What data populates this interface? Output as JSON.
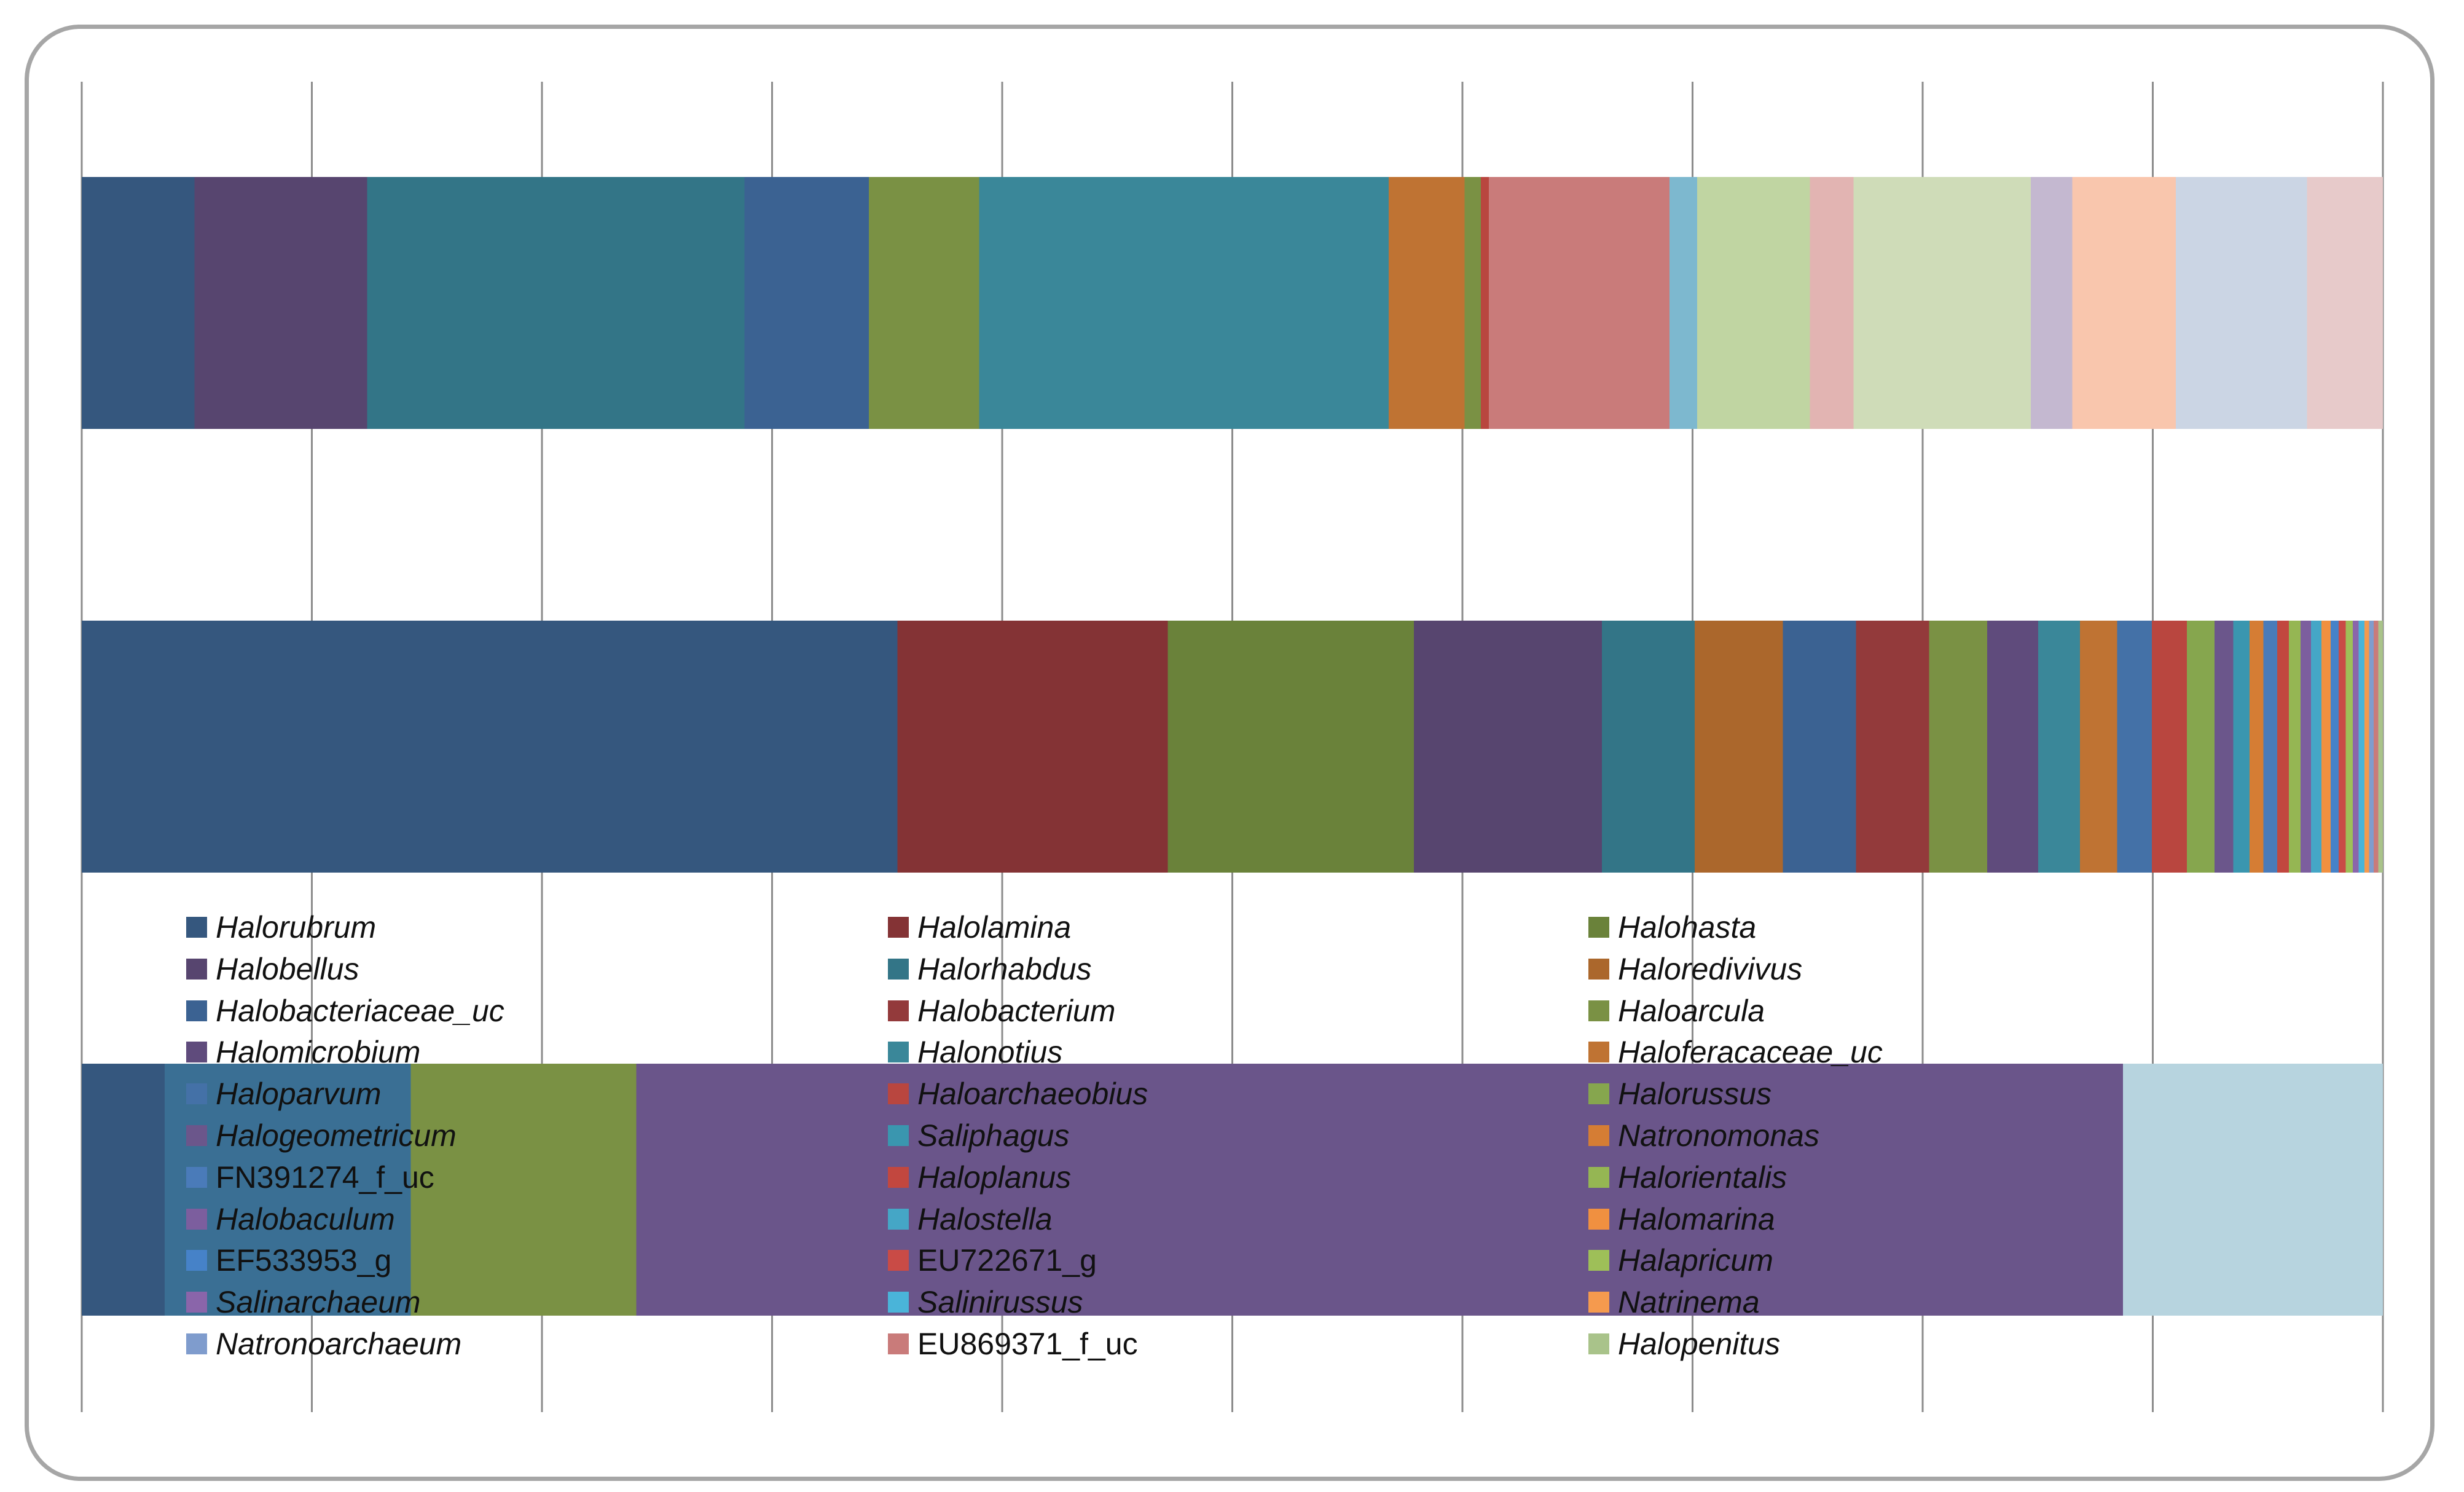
{
  "chart_data": {
    "type": "bar",
    "orientation": "horizontal",
    "stacked": "percent",
    "title": "",
    "xlabel": "",
    "ylabel": "",
    "xlim": [
      0,
      100
    ],
    "grid": true,
    "x_tick_labels": false,
    "bars": [
      {
        "segments": [
          {
            "value": 4.9,
            "color": "#35577e"
          },
          {
            "value": 7.5,
            "color": "#57456f"
          },
          {
            "value": 16.4,
            "color": "#337587"
          },
          {
            "value": 5.4,
            "color": "#3b6292"
          },
          {
            "value": 4.8,
            "color": "#7a9144"
          },
          {
            "value": 17.8,
            "color": "#3a8799"
          },
          {
            "value": 3.3,
            "color": "#bf7333"
          },
          {
            "value": 0.7,
            "color": "#7a9144"
          },
          {
            "value": 0.35,
            "color": "#b9463f"
          },
          {
            "value": 7.85,
            "color": "#c97b7a"
          },
          {
            "value": 1.2,
            "color": "#7db8cf"
          },
          {
            "value": 4.9,
            "color": "#c0d5a2"
          },
          {
            "value": 1.9,
            "color": "#e2b4b2"
          },
          {
            "value": 7.7,
            "color": "#cfdcb8"
          },
          {
            "value": 1.8,
            "color": "#c4b8d0"
          },
          {
            "value": 4.5,
            "color": "#f9c6ad"
          },
          {
            "value": 5.7,
            "color": "#cbd5e4"
          },
          {
            "value": 3.3,
            "color": "#e7caca"
          }
        ]
      },
      {
        "segments": [
          {
            "value": 35.15,
            "color": "#35577e"
          },
          {
            "value": 11.65,
            "color": "#843335"
          },
          {
            "value": 10.6,
            "color": "#6a823a"
          },
          {
            "value": 8.1,
            "color": "#57456f"
          },
          {
            "value": 4.0,
            "color": "#337587"
          },
          {
            "value": 3.8,
            "color": "#ab672c"
          },
          {
            "value": 3.15,
            "color": "#3b6292"
          },
          {
            "value": 3.15,
            "color": "#933a3b"
          },
          {
            "value": 2.5,
            "color": "#7a9144"
          },
          {
            "value": 2.2,
            "color": "#5f4b7c"
          },
          {
            "value": 1.8,
            "color": "#3a8799"
          },
          {
            "value": 1.6,
            "color": "#bf7333"
          },
          {
            "value": 1.5,
            "color": "#4471a7"
          },
          {
            "value": 1.5,
            "color": "#b9463f"
          },
          {
            "value": 1.2,
            "color": "#86a64e"
          },
          {
            "value": 0.8,
            "color": "#6b568b"
          },
          {
            "value": 0.7,
            "color": "#3a96af"
          },
          {
            "value": 0.6,
            "color": "#d57d34"
          },
          {
            "value": 0.6,
            "color": "#4a7bb9"
          },
          {
            "value": 0.5,
            "color": "#c2473f"
          },
          {
            "value": 0.5,
            "color": "#95b653"
          },
          {
            "value": 0.45,
            "color": "#7c5e9e"
          },
          {
            "value": 0.45,
            "color": "#45a6c6"
          },
          {
            "value": 0.4,
            "color": "#f09040"
          },
          {
            "value": 0.35,
            "color": "#4682c8"
          },
          {
            "value": 0.3,
            "color": "#c94b46"
          },
          {
            "value": 0.3,
            "color": "#9ebf58"
          },
          {
            "value": 0.25,
            "color": "#8a65aa"
          },
          {
            "value": 0.25,
            "color": "#4ab4d9"
          },
          {
            "value": 0.2,
            "color": "#f59a4e"
          },
          {
            "value": 0.2,
            "color": "#7f9ccd"
          },
          {
            "value": 0.2,
            "color": "#c97b7a"
          },
          {
            "value": 0.2,
            "color": "#a9c38a"
          }
        ]
      },
      {
        "segments": [
          {
            "value": 3.6,
            "color": "#35577e"
          },
          {
            "value": 10.7,
            "color": "#3a6f94"
          },
          {
            "value": 9.8,
            "color": "#7a9144"
          },
          {
            "value": 64.6,
            "color": "#6a558a"
          },
          {
            "value": 11.3,
            "color": "#b7d4df"
          }
        ]
      }
    ],
    "legend": {
      "placement": "overlay-center",
      "columns": 3,
      "entries": [
        {
          "name": "Halorubrum",
          "color": "#35577e",
          "italic": true
        },
        {
          "name": "Halolamina",
          "color": "#843335",
          "italic": true
        },
        {
          "name": "Halohasta",
          "color": "#6a823a",
          "italic": true
        },
        {
          "name": "Halobellus",
          "color": "#57456f",
          "italic": true
        },
        {
          "name": "Halorhabdus",
          "color": "#337587",
          "italic": true
        },
        {
          "name": "Haloredivivus",
          "color": "#ab672c",
          "italic": true
        },
        {
          "name": "Halobacteriaceae_uc",
          "color": "#3b6292",
          "italic": true
        },
        {
          "name": "Halobacterium",
          "color": "#933a3b",
          "italic": true
        },
        {
          "name": "Haloarcula",
          "color": "#7a9144",
          "italic": true
        },
        {
          "name": "Halomicrobium",
          "color": "#5f4b7c",
          "italic": true
        },
        {
          "name": "Halonotius",
          "color": "#3a8799",
          "italic": true
        },
        {
          "name": "Haloferacaceae_uc",
          "color": "#bf7333",
          "italic": true
        },
        {
          "name": "Haloparvum",
          "color": "#4471a7",
          "italic": true
        },
        {
          "name": "Haloarchaeobius",
          "color": "#b9463f",
          "italic": true
        },
        {
          "name": "Halorussus",
          "color": "#86a64e",
          "italic": true
        },
        {
          "name": "Halogeometricum",
          "color": "#6b568b",
          "italic": true
        },
        {
          "name": "Saliphagus",
          "color": "#3a96af",
          "italic": true
        },
        {
          "name": "Natronomonas",
          "color": "#d57d34",
          "italic": true
        },
        {
          "name": "FN391274_f_uc",
          "color": "#4a7bb9",
          "italic": false
        },
        {
          "name": "Haloplanus",
          "color": "#c2473f",
          "italic": true
        },
        {
          "name": "Halorientalis",
          "color": "#95b653",
          "italic": true
        },
        {
          "name": "Halobaculum",
          "color": "#7c5e9e",
          "italic": true
        },
        {
          "name": "Halostella",
          "color": "#45a6c6",
          "italic": true
        },
        {
          "name": "Halomarina",
          "color": "#f09040",
          "italic": true
        },
        {
          "name": "EF533953_g",
          "color": "#4682c8",
          "italic": false
        },
        {
          "name": "EU722671_g",
          "color": "#c94b46",
          "italic": false
        },
        {
          "name": "Halapricum",
          "color": "#9ebf58",
          "italic": true
        },
        {
          "name": "Salinarchaeum",
          "color": "#8a65aa",
          "italic": true
        },
        {
          "name": "Salinirussus",
          "color": "#4ab4d9",
          "italic": true
        },
        {
          "name": "Natrinema",
          "color": "#f59a4e",
          "italic": true
        },
        {
          "name": "Natronoarchaeum",
          "color": "#7f9ccd",
          "italic": true
        },
        {
          "name": "EU869371_f_uc",
          "color": "#c97b7a",
          "italic": false
        },
        {
          "name": "Halopenitus",
          "color": "#a9c38a",
          "italic": true
        }
      ]
    }
  }
}
